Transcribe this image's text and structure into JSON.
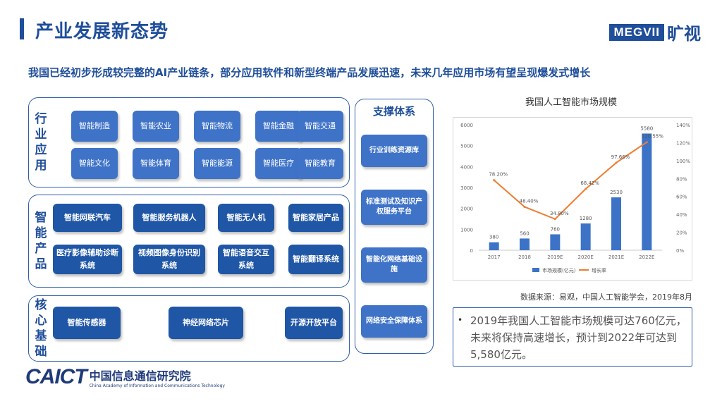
{
  "header": {
    "title": "产业发展新态势",
    "logo_mark": "MEGVII",
    "logo_cn": "旷视"
  },
  "subtitle": "我国已经初步形成较完整的AI产业链条，部分应用软件和新型终端产品发展迅速，未来几年应用市场有望呈现爆发式增长",
  "app_panel": {
    "label": "行业应用",
    "items": [
      "智能制造",
      "智能农业",
      "智能物流",
      "智能金融",
      "智能交通",
      "智能文化",
      "智能体育",
      "智能能源",
      "智能医疗",
      "智能教育"
    ]
  },
  "product_panel": {
    "label": "智能产品",
    "items": [
      "智能网联汽车",
      "智能服务机器人",
      "智能无人机",
      "智能家居产品",
      "医疗影像辅助诊断系统",
      "视频图像身份识别系统",
      "智能语音交互系统",
      "智能翻译系统"
    ]
  },
  "core_panel": {
    "label": "核心基础",
    "items": [
      "智能传感器",
      "神经网络芯片",
      "开源开放平台"
    ]
  },
  "support": {
    "title": "支撑体系",
    "items": [
      "行业训练资源库",
      "标准测试及知识产权服务平台",
      "智能化网络基础设施",
      "网络安全保障体系"
    ]
  },
  "chart_title": "我国人工智能市场规模",
  "chart_data": {
    "type": "bar",
    "title": "我国人工智能市场规模",
    "categories": [
      "2017",
      "2018",
      "2019E",
      "2020E",
      "2021E",
      "2022E"
    ],
    "series": [
      {
        "name": "市场规模(亿元)",
        "type": "bar",
        "axis": "left",
        "values": [
          380,
          560,
          760,
          1280,
          2530,
          5580
        ],
        "labels": [
          "380",
          "560",
          "760",
          "1280",
          "2530",
          "5580"
        ]
      },
      {
        "name": "增长率",
        "type": "line",
        "axis": "right",
        "values": [
          78.2,
          48.4,
          34.8,
          68.42,
          97.66,
          120.55
        ],
        "labels": [
          "78.20%",
          "48.40%",
          "34.80%",
          "68.42%",
          "97.66%",
          "120.55%"
        ]
      }
    ],
    "ylim_left": [
      0,
      6000
    ],
    "yticks_left": [
      "0",
      "1000",
      "2000",
      "3000",
      "4000",
      "5000",
      "6000"
    ],
    "ylim_right": [
      0,
      140
    ],
    "yticks_right": [
      "0%",
      "20%",
      "40%",
      "60%",
      "80%",
      "100%",
      "120%",
      "140%"
    ],
    "legend_position": "bottom",
    "grid": false,
    "colors": {
      "bar": "#3c73c6",
      "line": "#ed7d31"
    }
  },
  "source_text": "数据来源：易观，中国人工智能学会，2019年8月",
  "note": {
    "bullet": "•",
    "text": "2019年我国人工智能市场规模可达760亿元，未来将保持高速增长，预计到2022年可达到5,580亿元。"
  },
  "footer": {
    "caict_en": "CAICT",
    "caict_cn": "中国信息通信研究院",
    "caict_sub": "China Academy of Information and Communications Technology"
  }
}
